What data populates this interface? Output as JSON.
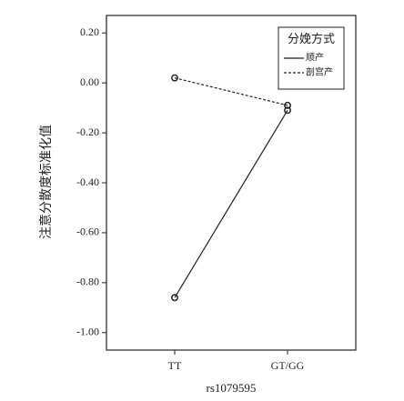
{
  "chart_data": {
    "type": "line",
    "x_label": "rs1079595",
    "y_label": "注意分散度标准化值",
    "categories": [
      "TT",
      "GT/GG"
    ],
    "legend_title": "分娩方式",
    "legend": "upper right",
    "series": [
      {
        "name": "顺产",
        "color": "#222222",
        "style": "solid",
        "values": [
          -0.86,
          -0.11
        ]
      },
      {
        "name": "剖宫产",
        "color": "#222222",
        "style": "dashed",
        "values": [
          0.02,
          -0.09
        ]
      }
    ],
    "ylim": [
      -1.07,
      0.27
    ],
    "yticks": [
      {
        "value": 0.2,
        "label": "0.20"
      },
      {
        "value": 0,
        "label": "0.00"
      },
      {
        "value": -0.2,
        "label": "-0.20"
      },
      {
        "value": -0.4,
        "label": "-0.40"
      },
      {
        "value": -0.6,
        "label": "-0.60"
      },
      {
        "value": -0.8,
        "label": "-0.80"
      },
      {
        "value": -1,
        "label": "-1.00"
      }
    ]
  }
}
